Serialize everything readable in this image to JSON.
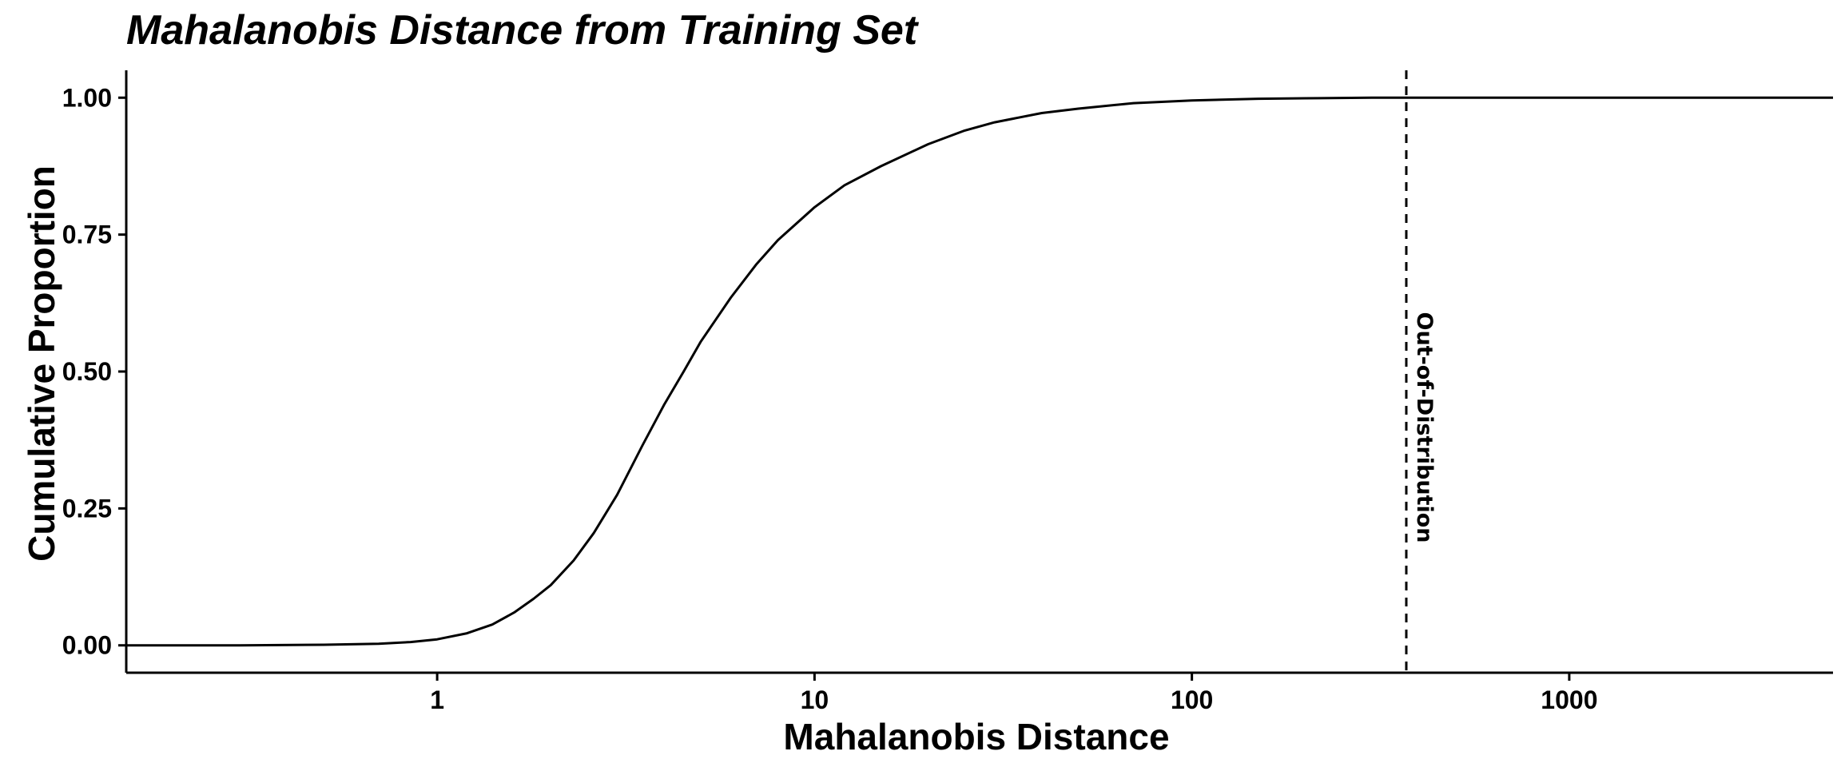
{
  "chart_data": {
    "type": "line",
    "title": "Mahalanobis Distance from Training Set",
    "xlabel": "Mahalanobis Distance",
    "ylabel": "Cumulative Proportion",
    "x_scale": "log10",
    "xlim": [
      0.15,
      5000
    ],
    "ylim": [
      -0.05,
      1.05
    ],
    "x_ticks": [
      {
        "value": 1,
        "label": "1"
      },
      {
        "value": 10,
        "label": "10"
      },
      {
        "value": 100,
        "label": "100"
      },
      {
        "value": 1000,
        "label": "1000"
      }
    ],
    "y_ticks": [
      {
        "value": 0.0,
        "label": "0.00"
      },
      {
        "value": 0.25,
        "label": "0.25"
      },
      {
        "value": 0.5,
        "label": "0.50"
      },
      {
        "value": 0.75,
        "label": "0.75"
      },
      {
        "value": 1.0,
        "label": "1.00"
      }
    ],
    "grid": false,
    "series": [
      {
        "x": [
          0.15,
          0.3,
          0.5,
          0.7,
          0.85,
          1.0,
          1.2,
          1.4,
          1.6,
          1.8,
          2.0,
          2.3,
          2.6,
          3.0,
          3.5,
          4.0,
          4.5,
          5.0,
          6.0,
          7.0,
          8.0,
          10.0,
          12.0,
          15.0,
          20.0,
          25.0,
          30.0,
          40.0,
          50.0,
          70.0,
          100.0,
          150.0,
          200.0,
          300.0,
          500.0,
          1000.0,
          5000.0
        ],
        "y": [
          0.0,
          0.0,
          0.001,
          0.003,
          0.006,
          0.011,
          0.022,
          0.038,
          0.06,
          0.085,
          0.11,
          0.155,
          0.205,
          0.275,
          0.365,
          0.44,
          0.5,
          0.555,
          0.635,
          0.695,
          0.74,
          0.8,
          0.84,
          0.875,
          0.915,
          0.94,
          0.955,
          0.972,
          0.98,
          0.99,
          0.995,
          0.998,
          0.999,
          1.0,
          1.0,
          1.0,
          1.0
        ],
        "color": "#000000"
      }
    ],
    "annotations": [
      {
        "type": "vline",
        "x": 370,
        "style": "dashed",
        "label": "Out-of-Distribution"
      }
    ]
  }
}
